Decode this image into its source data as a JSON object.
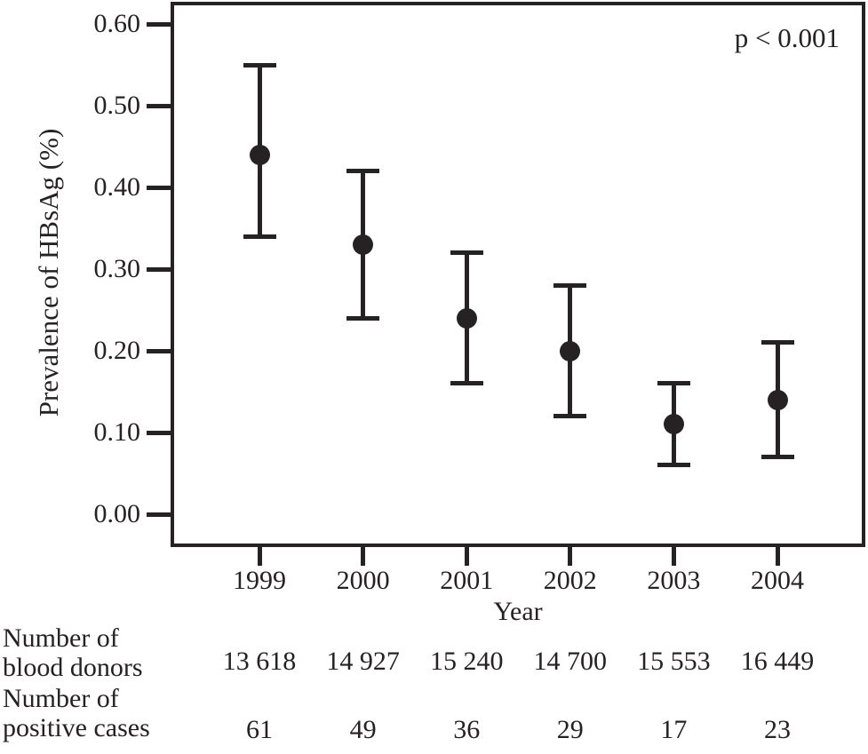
{
  "figure": {
    "background": "#ffffff",
    "ink_color": "#262122"
  },
  "chart_data": {
    "type": "scatter",
    "title": "",
    "xlabel": "Year",
    "ylabel": "Prevalence of HBsAg (%)",
    "annotation": "p < 0.001",
    "grid": false,
    "legend": false,
    "error_bars": "95% confidence interval",
    "ylim": [
      -0.04,
      0.63
    ],
    "y_ticks": [
      "0.60",
      "0.50",
      "0.40",
      "0.30",
      "0.20",
      "0.10",
      "0.00"
    ],
    "x_categories": [
      "1999",
      "2000",
      "2001",
      "2002",
      "2003",
      "2004"
    ],
    "points": [
      {
        "year": "1999",
        "value": 0.44,
        "ci_low": 0.34,
        "ci_high": 0.55
      },
      {
        "year": "2000",
        "value": 0.33,
        "ci_low": 0.24,
        "ci_high": 0.42
      },
      {
        "year": "2001",
        "value": 0.24,
        "ci_low": 0.16,
        "ci_high": 0.32
      },
      {
        "year": "2002",
        "value": 0.2,
        "ci_low": 0.12,
        "ci_high": 0.28
      },
      {
        "year": "2003",
        "value": 0.11,
        "ci_low": 0.06,
        "ci_high": 0.16
      },
      {
        "year": "2004",
        "value": 0.14,
        "ci_low": 0.07,
        "ci_high": 0.21
      }
    ]
  },
  "table": {
    "rows": [
      {
        "label": [
          "Number of",
          "blood donors"
        ],
        "values": [
          "13 618",
          "14 927",
          "15 240",
          "14 700",
          "15 553",
          "16 449"
        ]
      },
      {
        "label": [
          "Number of",
          "positive cases"
        ],
        "values": [
          "61",
          "49",
          "36",
          "29",
          "17",
          "23"
        ]
      }
    ]
  }
}
